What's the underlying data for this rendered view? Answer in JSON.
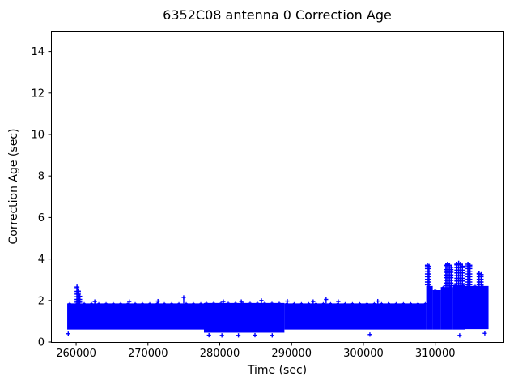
{
  "chart_data": {
    "type": "scatter",
    "title": "6352C08 antenna 0 Correction Age",
    "xlabel": "Time (sec)",
    "ylabel": "Correction Age (sec)",
    "xlim": [
      256500,
      319500
    ],
    "ylim": [
      0,
      15
    ],
    "xticks": [
      260000,
      270000,
      280000,
      290000,
      300000,
      310000
    ],
    "yticks": [
      0,
      2,
      4,
      6,
      8,
      10,
      12,
      14
    ],
    "grid": false,
    "legend": false,
    "marker": "+",
    "series_color": "#0000ff",
    "axis_color": "#000000",
    "background_color": "#ffffff",
    "band_segments": [
      {
        "t0": 258760,
        "t1": 277800,
        "y0": 0.6,
        "y1": 1.86
      },
      {
        "t0": 277800,
        "t1": 289000,
        "y0": 0.45,
        "y1": 1.88
      },
      {
        "t0": 289000,
        "t1": 308750,
        "y0": 0.6,
        "y1": 1.86
      },
      {
        "t0": 308750,
        "t1": 309650,
        "y0": 0.6,
        "y1": 2.7
      },
      {
        "t0": 309650,
        "t1": 310780,
        "y0": 0.6,
        "y1": 2.5
      },
      {
        "t0": 310780,
        "t1": 312500,
        "y0": 0.6,
        "y1": 2.65
      },
      {
        "t0": 312500,
        "t1": 314200,
        "y0": 0.6,
        "y1": 2.75
      },
      {
        "t0": 314200,
        "t1": 317420,
        "y0": 0.62,
        "y1": 2.7
      }
    ],
    "spike_trains": [
      {
        "t": 260120,
        "y_top": 2.65
      },
      {
        "t": 260310,
        "y_top": 2.45
      },
      {
        "t": 260500,
        "y_top": 2.2
      },
      {
        "t": 308900,
        "y_top": 3.7
      },
      {
        "t": 309120,
        "y_top": 3.65
      },
      {
        "t": 311500,
        "y_top": 3.7
      },
      {
        "t": 311730,
        "y_top": 3.75
      },
      {
        "t": 311960,
        "y_top": 3.7
      },
      {
        "t": 312200,
        "y_top": 3.6
      },
      {
        "t": 313000,
        "y_top": 3.75
      },
      {
        "t": 313260,
        "y_top": 3.8
      },
      {
        "t": 313520,
        "y_top": 3.75
      },
      {
        "t": 313780,
        "y_top": 3.65
      },
      {
        "t": 314550,
        "y_top": 3.75
      },
      {
        "t": 314820,
        "y_top": 3.7
      },
      {
        "t": 316100,
        "y_top": 3.3
      },
      {
        "t": 316400,
        "y_top": 3.25
      }
    ],
    "outlier_points": [
      {
        "t": 262600,
        "y": 1.95
      },
      {
        "t": 267400,
        "y": 1.95
      },
      {
        "t": 271400,
        "y": 1.97
      },
      {
        "t": 274980,
        "y": 2.15
      },
      {
        "t": 280500,
        "y": 1.95
      },
      {
        "t": 283000,
        "y": 1.95
      },
      {
        "t": 285800,
        "y": 2.0
      },
      {
        "t": 289400,
        "y": 1.97
      },
      {
        "t": 293000,
        "y": 1.95
      },
      {
        "t": 294800,
        "y": 2.05
      },
      {
        "t": 296500,
        "y": 1.95
      },
      {
        "t": 302000,
        "y": 1.97
      },
      {
        "t": 258900,
        "y": 0.4
      },
      {
        "t": 278500,
        "y": 0.33
      },
      {
        "t": 280300,
        "y": 0.32
      },
      {
        "t": 282600,
        "y": 0.32
      },
      {
        "t": 284900,
        "y": 0.33
      },
      {
        "t": 287300,
        "y": 0.32
      },
      {
        "t": 300900,
        "y": 0.36
      },
      {
        "t": 313400,
        "y": 0.32
      },
      {
        "t": 316900,
        "y": 0.42
      }
    ]
  }
}
